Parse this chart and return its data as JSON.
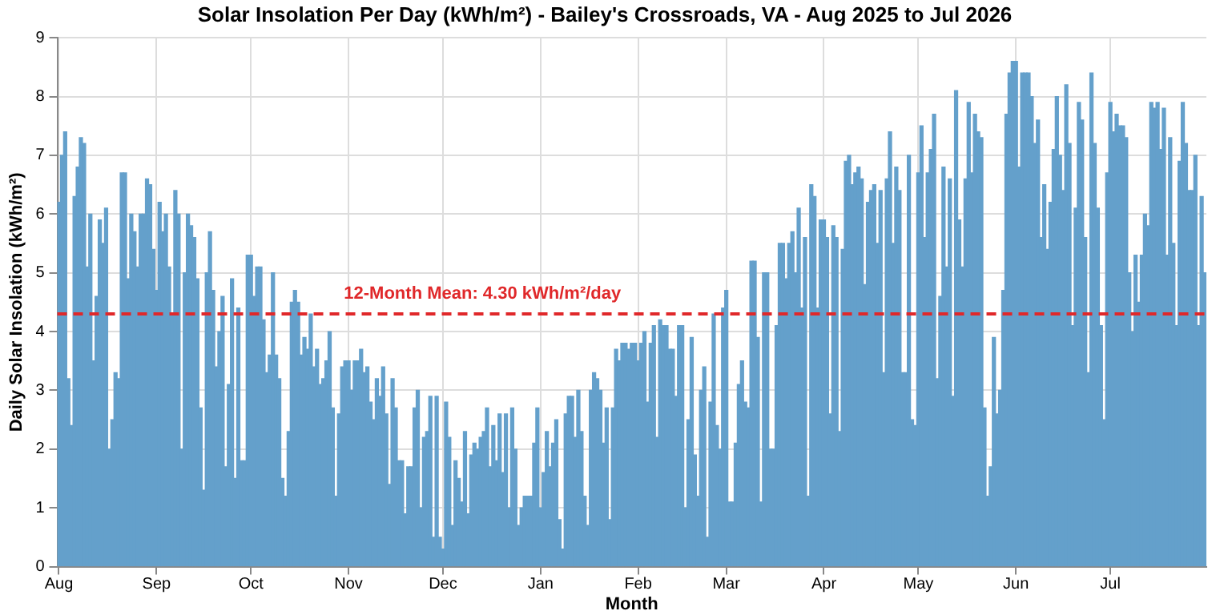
{
  "chart_data": {
    "type": "bar",
    "title": "Solar Insolation Per Day (kWh/m²) - Bailey's Crossroads, VA - Aug 2025 to Jul 2026",
    "xlabel": "Month",
    "ylabel": "Daily Solar Insolation (kWh/m²)",
    "categories": [
      "Aug",
      null,
      null,
      null,
      null,
      null,
      null,
      null,
      null,
      null,
      null,
      null,
      null,
      null,
      null,
      null,
      null,
      null,
      null,
      null,
      null,
      null,
      null,
      null,
      null,
      null,
      null,
      null,
      null,
      null,
      null,
      "Sep",
      null,
      null,
      null,
      null,
      null,
      null,
      null,
      null,
      null,
      null,
      null,
      null,
      null,
      null,
      null,
      null,
      null,
      null,
      null,
      null,
      null,
      null,
      null,
      null,
      null,
      null,
      null,
      null,
      null,
      "Oct",
      null,
      null,
      null,
      null,
      null,
      null,
      null,
      null,
      null,
      null,
      null,
      null,
      null,
      null,
      null,
      null,
      null,
      null,
      null,
      null,
      null,
      null,
      null,
      null,
      null,
      null,
      null,
      null,
      null,
      null,
      "Nov",
      null,
      null,
      null,
      null,
      null,
      null,
      null,
      null,
      null,
      null,
      null,
      null,
      null,
      null,
      null,
      null,
      null,
      null,
      null,
      null,
      null,
      null,
      null,
      null,
      null,
      null,
      null,
      null,
      null,
      "Dec",
      null,
      null,
      null,
      null,
      null,
      null,
      null,
      null,
      null,
      null,
      null,
      null,
      null,
      null,
      null,
      null,
      null,
      null,
      null,
      null,
      null,
      null,
      null,
      null,
      null,
      null,
      null,
      null,
      null,
      null,
      "Jan",
      null,
      null,
      null,
      null,
      null,
      null,
      null,
      null,
      null,
      null,
      null,
      null,
      null,
      null,
      null,
      null,
      null,
      null,
      null,
      null,
      null,
      null,
      null,
      null,
      null,
      null,
      null,
      null,
      null,
      null,
      "Feb",
      null,
      null,
      null,
      null,
      null,
      null,
      null,
      null,
      null,
      null,
      null,
      null,
      null,
      null,
      null,
      null,
      null,
      null,
      null,
      null,
      null,
      null,
      null,
      null,
      null,
      null,
      null,
      "Mar",
      null,
      null,
      null,
      null,
      null,
      null,
      null,
      null,
      null,
      null,
      null,
      null,
      null,
      null,
      null,
      null,
      null,
      null,
      null,
      null,
      null,
      null,
      null,
      null,
      null,
      null,
      null,
      null,
      null,
      null,
      "Apr",
      null,
      null,
      null,
      null,
      null,
      null,
      null,
      null,
      null,
      null,
      null,
      null,
      null,
      null,
      null,
      null,
      null,
      null,
      null,
      null,
      null,
      null,
      null,
      null,
      null,
      null,
      null,
      null,
      null,
      "May",
      null,
      null,
      null,
      null,
      null,
      null,
      null,
      null,
      null,
      null,
      null,
      null,
      null,
      null,
      null,
      null,
      null,
      null,
      null,
      null,
      null,
      null,
      null,
      null,
      null,
      null,
      null,
      null,
      null,
      null,
      "Jun",
      null,
      null,
      null,
      null,
      null,
      null,
      null,
      null,
      null,
      null,
      null,
      null,
      null,
      null,
      null,
      null,
      null,
      null,
      null,
      null,
      null,
      null,
      null,
      null,
      null,
      null,
      null,
      null,
      null,
      "Jul",
      null,
      null,
      null,
      null,
      null,
      null,
      null,
      null,
      null,
      null,
      null,
      null,
      null,
      null,
      null,
      null,
      null,
      null,
      null,
      null,
      null,
      null,
      null,
      null,
      null,
      null,
      null,
      null,
      null,
      null
    ],
    "values": [
      6.2,
      7.0,
      7.4,
      3.2,
      2.4,
      6.3,
      6.8,
      7.3,
      7.2,
      5.1,
      6.0,
      3.5,
      4.6,
      5.9,
      5.5,
      6.1,
      2.0,
      2.5,
      3.3,
      3.2,
      6.7,
      6.7,
      4.9,
      6.0,
      5.7,
      5.1,
      6.0,
      6.0,
      6.6,
      6.5,
      5.4,
      4.7,
      6.2,
      5.7,
      6.0,
      5.1,
      4.3,
      6.4,
      6.0,
      2.0,
      5.0,
      6.0,
      5.8,
      5.6,
      4.9,
      2.7,
      1.3,
      5.0,
      5.7,
      4.7,
      3.4,
      4.0,
      4.6,
      1.7,
      3.1,
      4.9,
      1.5,
      4.4,
      1.8,
      1.8,
      5.3,
      5.3,
      4.6,
      5.1,
      5.1,
      4.2,
      3.3,
      3.6,
      5.0,
      3.6,
      3.2,
      1.5,
      1.2,
      2.3,
      4.5,
      4.7,
      4.5,
      3.6,
      3.9,
      3.7,
      4.3,
      3.4,
      3.7,
      3.1,
      3.2,
      3.5,
      4.0,
      2.7,
      1.2,
      2.6,
      3.4,
      3.5,
      3.5,
      3.0,
      3.5,
      3.5,
      3.7,
      3.3,
      3.4,
      2.8,
      2.5,
      3.2,
      2.9,
      3.4,
      2.6,
      1.4,
      3.2,
      2.7,
      1.8,
      1.8,
      0.9,
      1.7,
      1.7,
      2.7,
      3.0,
      1.0,
      2.2,
      2.3,
      2.9,
      0.5,
      2.9,
      0.5,
      0.3,
      2.8,
      2.2,
      0.7,
      1.8,
      1.5,
      1.1,
      2.3,
      0.9,
      1.9,
      2.1,
      2.0,
      2.2,
      2.3,
      2.7,
      1.7,
      2.4,
      1.8,
      2.6,
      1.6,
      2.6,
      1.0,
      2.7,
      2.0,
      0.7,
      1.0,
      1.2,
      1.2,
      1.2,
      2.1,
      2.7,
      1.0,
      1.6,
      2.3,
      1.7,
      2.1,
      2.5,
      0.8,
      0.3,
      2.6,
      2.9,
      2.9,
      2.2,
      3.0,
      2.3,
      1.2,
      0.7,
      3.0,
      3.3,
      3.2,
      3.0,
      2.1,
      2.7,
      0.8,
      2.7,
      3.7,
      3.5,
      3.8,
      3.8,
      3.7,
      3.8,
      3.8,
      3.5,
      3.8,
      4.0,
      2.8,
      3.8,
      4.1,
      2.2,
      4.2,
      4.1,
      4.1,
      3.7,
      3.7,
      2.9,
      4.1,
      4.1,
      1.0,
      2.5,
      3.9,
      1.9,
      1.2,
      3.0,
      3.4,
      0.5,
      2.8,
      4.3,
      2.4,
      2.0,
      4.4,
      4.7,
      1.1,
      1.1,
      2.1,
      3.1,
      3.5,
      2.8,
      2.7,
      5.2,
      5.2,
      3.9,
      1.1,
      5.0,
      5.0,
      2.0,
      2.0,
      4.1,
      5.5,
      5.5,
      4.9,
      5.5,
      5.7,
      5.0,
      6.1,
      4.4,
      5.6,
      1.2,
      6.5,
      6.3,
      4.4,
      5.9,
      5.9,
      5.6,
      2.6,
      5.8,
      5.6,
      2.3,
      5.4,
      6.9,
      7.0,
      6.5,
      6.7,
      6.8,
      6.6,
      4.8,
      6.2,
      6.4,
      6.5,
      5.5,
      6.4,
      3.3,
      6.6,
      7.4,
      5.5,
      6.8,
      6.4,
      3.3,
      3.3,
      7.0,
      2.5,
      2.4,
      6.7,
      7.5,
      5.6,
      6.7,
      7.1,
      7.7,
      3.2,
      4.6,
      6.8,
      5.1,
      6.6,
      2.9,
      8.1,
      5.9,
      5.1,
      6.6,
      7.9,
      6.7,
      7.7,
      7.4,
      7.3,
      2.7,
      1.2,
      1.7,
      3.9,
      2.6,
      3.0,
      4.7,
      7.7,
      8.4,
      8.6,
      8.6,
      6.8,
      8.4,
      8.4,
      8.4,
      8.0,
      7.2,
      7.6,
      5.6,
      6.5,
      5.4,
      6.2,
      7.1,
      8.0,
      7.0,
      6.4,
      8.2,
      7.2,
      4.1,
      6.1,
      7.9,
      7.6,
      5.6,
      3.3,
      8.4,
      7.2,
      6.1,
      4.1,
      2.5,
      6.7,
      7.9,
      7.4,
      7.7,
      7.5,
      7.5,
      7.3,
      5.0,
      4.0,
      5.3,
      4.5,
      5.3,
      6.0,
      5.8,
      7.9,
      7.8,
      7.9,
      7.1,
      7.8,
      5.3,
      7.3,
      5.5,
      4.1,
      6.9,
      7.9,
      7.2,
      6.4,
      6.4,
      7.0,
      4.1,
      6.3,
      5.0
    ],
    "color": "#64a0cb",
    "ylim": [
      0,
      9
    ],
    "yticks": [
      0,
      1,
      2,
      3,
      4,
      5,
      6,
      7,
      8,
      9
    ],
    "grid": true,
    "ref_lines": [
      {
        "axis": "y",
        "value": 4.3,
        "label": "12-Month Mean: 4.30 kWh/m²/day",
        "color": "#e0282a",
        "line_style": "dashed"
      }
    ]
  }
}
